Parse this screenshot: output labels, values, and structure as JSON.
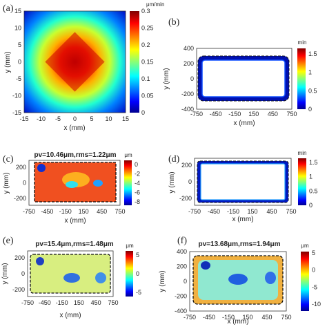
{
  "panels": [
    {
      "id": "a",
      "label": "(a)",
      "type": "heatmap",
      "title": "",
      "xlabel": "x (mm)",
      "ylabel": "y (mm)",
      "xticks": [
        "-15",
        "-10",
        "-5",
        "0",
        "5",
        "10",
        "15"
      ],
      "yticks": [
        "15",
        "10",
        "5",
        "0",
        "-5",
        "-10",
        "-15"
      ],
      "xlim": [
        -15,
        15
      ],
      "ylim": [
        -15,
        15
      ],
      "colorbar": {
        "unit": "μm/min",
        "ticks": [
          "0.3",
          "0.25",
          "0.2",
          "0.15",
          "0.1",
          "0.05",
          "0"
        ],
        "range": [
          0,
          0.3
        ]
      }
    },
    {
      "id": "b",
      "label": "(b)",
      "type": "heatmap",
      "title": "",
      "xlabel": "x (mm)",
      "ylabel": "y (mm)",
      "xticks": [
        "-750",
        "-450",
        "-150",
        "150",
        "450",
        "750"
      ],
      "yticks": [
        "400",
        "200",
        "0",
        "-200",
        "-400"
      ],
      "xlim": [
        -750,
        750
      ],
      "ylim": [
        -400,
        400
      ],
      "colorbar": {
        "unit": "min",
        "ticks": [
          "1.5",
          "1",
          "0.5",
          "0"
        ],
        "range": [
          0,
          1.7
        ]
      }
    },
    {
      "id": "c",
      "label": "(c)",
      "type": "heatmap",
      "title": "pv=10.46μm,rms=1.22μm",
      "xlabel": "x (mm)",
      "ylabel": "y (mm)",
      "xticks": [
        "-750",
        "-450",
        "-150",
        "150",
        "450",
        "750"
      ],
      "yticks": [
        "200",
        "0",
        "-200"
      ],
      "xlim": [
        -750,
        750
      ],
      "ylim": [
        -300,
        300
      ],
      "colorbar": {
        "unit": "μm",
        "ticks": [
          "0",
          "-2",
          "-4",
          "-6",
          "-8"
        ],
        "range": [
          -9,
          1
        ]
      }
    },
    {
      "id": "d",
      "label": "(d)",
      "type": "heatmap",
      "title": "",
      "xlabel": "x (mm)",
      "ylabel": "y (mm)",
      "xticks": [
        "-750",
        "-450",
        "-150",
        "150",
        "450",
        "750"
      ],
      "yticks": [
        "200",
        "0",
        "-200"
      ],
      "xlim": [
        -750,
        750
      ],
      "ylim": [
        -300,
        300
      ],
      "colorbar": {
        "unit": "min",
        "ticks": [
          "1.5",
          "1",
          "0.5",
          "0"
        ],
        "range": [
          0,
          1.7
        ]
      }
    },
    {
      "id": "e",
      "label": "(e)",
      "type": "heatmap",
      "title": "pv=15.4μm,rms=1.48μm",
      "xlabel": "x (mm)",
      "ylabel": "y (mm)",
      "xticks": [
        "-750",
        "-450",
        "-150",
        "150",
        "450",
        "750"
      ],
      "yticks": [
        "200",
        "0",
        "-200"
      ],
      "xlim": [
        -750,
        750
      ],
      "ylim": [
        -300,
        300
      ],
      "colorbar": {
        "unit": "μm",
        "ticks": [
          "5",
          "0",
          "-5"
        ],
        "range": [
          -8,
          7
        ]
      }
    },
    {
      "id": "f",
      "label": "(f)",
      "type": "heatmap",
      "title": "pv=13.68μm,rms=1.94μm",
      "xlabel": "x (mm)",
      "ylabel": "y (mm)",
      "xticks": [
        "-750",
        "-450",
        "-150",
        "150",
        "450",
        "750"
      ],
      "yticks": [
        "400",
        "200",
        "0",
        "-200",
        "-400"
      ],
      "xlim": [
        -750,
        750
      ],
      "ylim": [
        -400,
        400
      ],
      "colorbar": {
        "unit": "μm",
        "ticks": [
          "5",
          "0",
          "-5",
          "-10"
        ],
        "range": [
          -11,
          7
        ]
      }
    }
  ],
  "chart_data": [
    {
      "type": "heatmap",
      "panel": "(a)",
      "xlabel": "x (mm)",
      "ylabel": "y (mm)",
      "xlim": [
        -15,
        15
      ],
      "ylim": [
        -15,
        15
      ],
      "colorbar_unit": "μm/min",
      "colorbar_range": [
        0,
        0.3
      ],
      "peak_value": 0.3,
      "peak_center": [
        0,
        0
      ]
    },
    {
      "type": "heatmap",
      "panel": "(b)",
      "xlabel": "x (mm)",
      "ylabel": "y (mm)",
      "xlim": [
        -750,
        750
      ],
      "ylim": [
        -400,
        400
      ],
      "colorbar_unit": "min",
      "colorbar_range": [
        0,
        1.7
      ]
    },
    {
      "type": "heatmap",
      "panel": "(c)",
      "title": "pv=10.46μm,rms=1.22μm",
      "xlabel": "x (mm)",
      "ylabel": "y (mm)",
      "xlim": [
        -750,
        750
      ],
      "ylim": [
        -300,
        300
      ],
      "colorbar_unit": "μm",
      "colorbar_range": [
        -9,
        1
      ]
    },
    {
      "type": "heatmap",
      "panel": "(d)",
      "xlabel": "x (mm)",
      "ylabel": "y (mm)",
      "xlim": [
        -750,
        750
      ],
      "ylim": [
        -300,
        300
      ],
      "colorbar_unit": "min",
      "colorbar_range": [
        0,
        1.7
      ]
    },
    {
      "type": "heatmap",
      "panel": "(e)",
      "title": "pv=15.4μm,rms=1.48μm",
      "xlabel": "x (mm)",
      "ylabel": "y (mm)",
      "xlim": [
        -750,
        750
      ],
      "ylim": [
        -300,
        300
      ],
      "colorbar_unit": "μm",
      "colorbar_range": [
        -8,
        7
      ]
    },
    {
      "type": "heatmap",
      "panel": "(f)",
      "title": "pv=13.68μm,rms=1.94μm",
      "xlabel": "x (mm)",
      "ylabel": "y (mm)",
      "xlim": [
        -750,
        750
      ],
      "ylim": [
        -400,
        400
      ],
      "colorbar_unit": "μm",
      "colorbar_range": [
        -11,
        7
      ]
    }
  ]
}
